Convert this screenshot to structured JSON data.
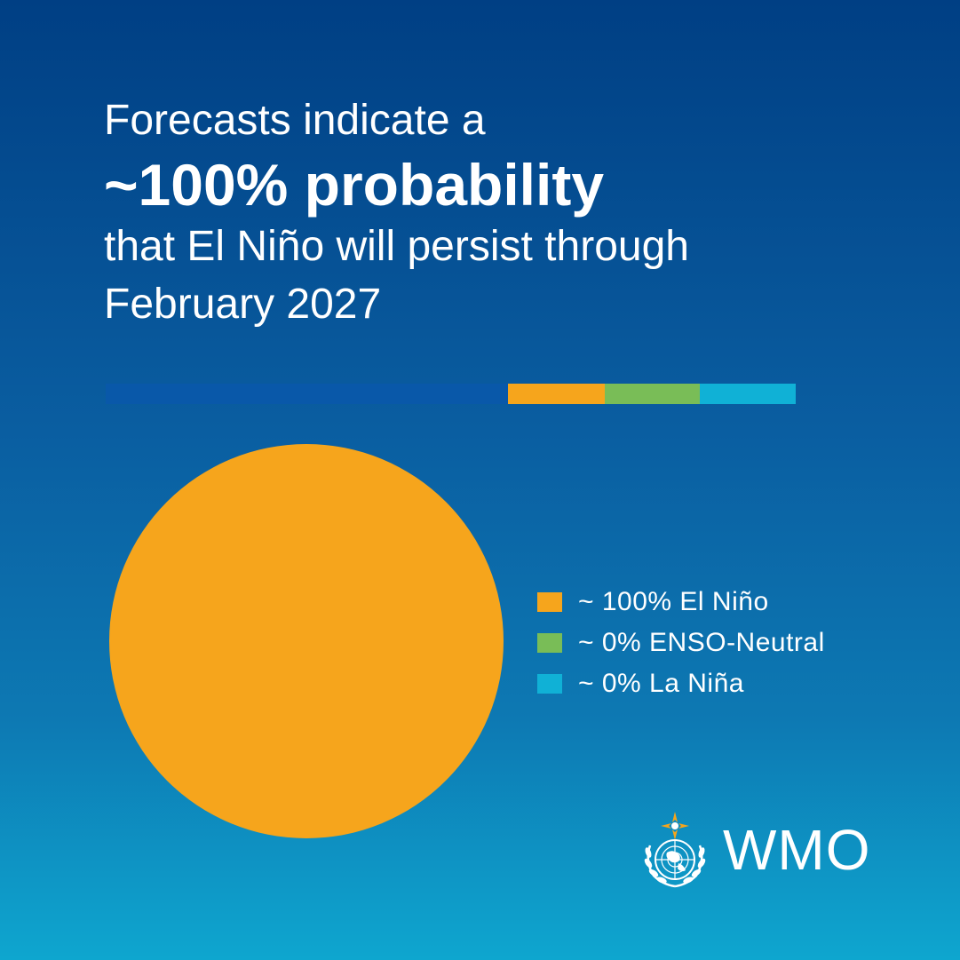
{
  "headline": {
    "line1": "Forecasts indicate a",
    "line2": "~100% probability",
    "line3": "that El Niño will persist through",
    "line4": "February 2027"
  },
  "colors": {
    "el_nino": "#f6a51c",
    "enso_neutral": "#79bd57",
    "la_nina": "#10b1d6",
    "strip_blue": "#0958a9"
  },
  "chart_data": {
    "type": "pie",
    "title": "",
    "series": [
      {
        "name": "~ 100% El Niño",
        "value": 100,
        "color": "#f6a51c"
      },
      {
        "name": "~ 0% ENSO-Neutral",
        "value": 0,
        "color": "#79bd57"
      },
      {
        "name": "~ 0% La Niña",
        "value": 0,
        "color": "#10b1d6"
      }
    ],
    "legend_position": "right"
  },
  "legend": [
    {
      "label": "~ 100% El Niño",
      "color": "#f6a51c"
    },
    {
      "label": "~ 0% ENSO-Neutral",
      "color": "#79bd57"
    },
    {
      "label": "~ 0% La Niña",
      "color": "#10b1d6"
    }
  ],
  "logo": {
    "wordmark": "WMO",
    "emblem_icon": "un-emblem-icon"
  }
}
